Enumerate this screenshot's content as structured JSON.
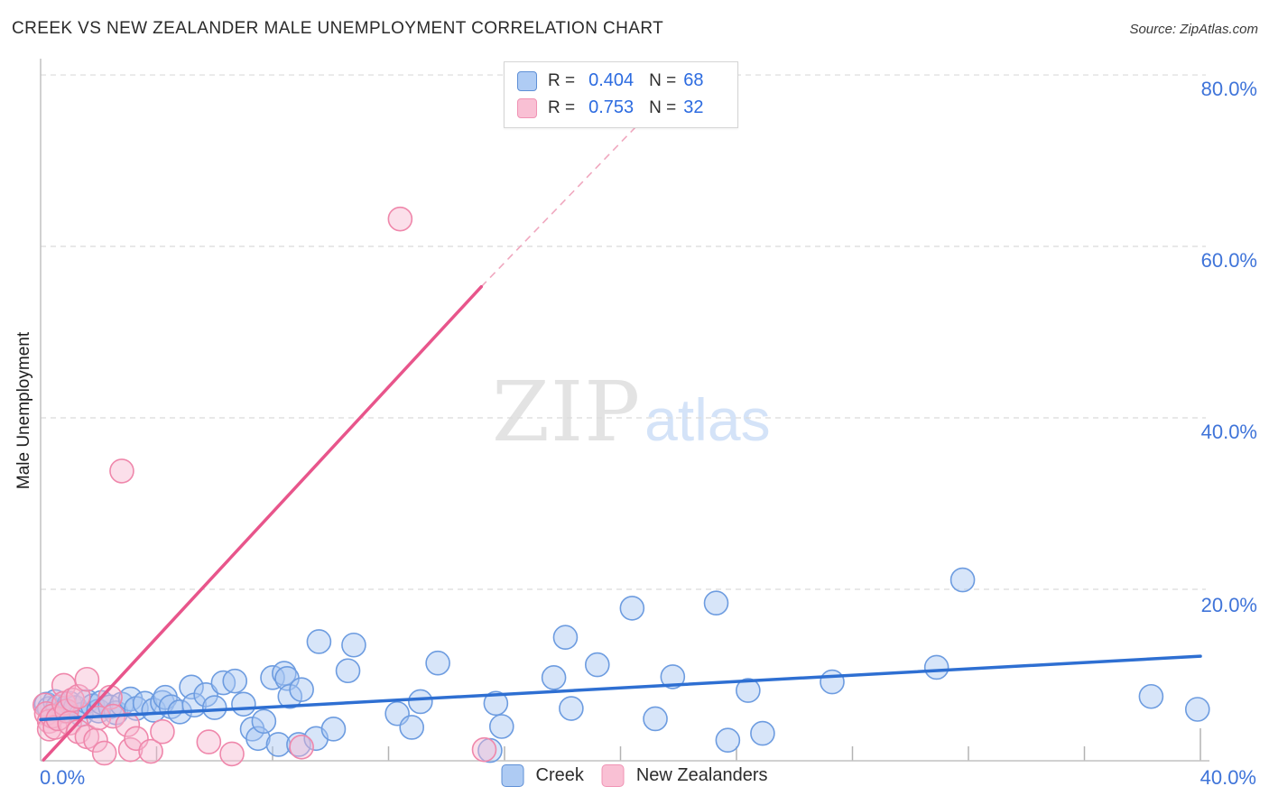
{
  "header": {
    "title": "CREEK VS NEW ZEALANDER MALE UNEMPLOYMENT CORRELATION CHART",
    "source": "Source: ZipAtlas.com"
  },
  "y_axis_label": "Male Unemployment",
  "watermark": {
    "zip": "ZIP",
    "atlas": "atlas"
  },
  "stats_legend": {
    "rows": [
      {
        "series": "Creek",
        "r_label": "R =",
        "r_value": "0.404",
        "n_label": "N =",
        "n_value": "68"
      },
      {
        "series": "New Zealanders",
        "r_label": "R =",
        "r_value": "0.753",
        "n_label": "N =",
        "n_value": "32"
      }
    ]
  },
  "bottom_legend": [
    {
      "label": "Creek"
    },
    {
      "label": "New Zealanders"
    }
  ],
  "axes": {
    "y_ticks": [
      {
        "label": "80.0%",
        "value": 80
      },
      {
        "label": "60.0%",
        "value": 60
      },
      {
        "label": "40.0%",
        "value": 40
      },
      {
        "label": "20.0%",
        "value": 20
      }
    ],
    "x_ticks": [
      {
        "label": "0.0%",
        "value": 0
      },
      {
        "label": "40.0%",
        "value": 40
      }
    ]
  },
  "chart_data": {
    "type": "scatter",
    "xlabel": "",
    "ylabel": "Male Unemployment",
    "xlim": [
      0,
      40
    ],
    "ylim": [
      0,
      81.9
    ],
    "grid": "dashed-horizontal",
    "x_minor_ticks": [
      4,
      8,
      12,
      16,
      20,
      24,
      28,
      32,
      36,
      40
    ],
    "colors": {
      "creek_fill": "#a7c6f2",
      "creek_stroke": "#6d9ce0",
      "creek_line": "#2e6fd2",
      "nz_fill": "#f7b7d0",
      "nz_stroke": "#ef87ab",
      "nz_line": "#e8558b",
      "nz_dashed": "#f0a8bf",
      "grid": "#dadada",
      "axis": "#c2c2c2",
      "tick_label": "#3f74d9"
    },
    "series": [
      {
        "name": "Creek",
        "points": [
          [
            0.2,
            6.6
          ],
          [
            0.3,
            6.1
          ],
          [
            0.5,
            6.9
          ],
          [
            0.6,
            6.3
          ],
          [
            0.8,
            5.8
          ],
          [
            1.0,
            6.7
          ],
          [
            1.2,
            6.2
          ],
          [
            1.4,
            5.4
          ],
          [
            1.6,
            6.9
          ],
          [
            1.8,
            6.4
          ],
          [
            2.0,
            5.8
          ],
          [
            2.1,
            6.8
          ],
          [
            2.4,
            6.3
          ],
          [
            2.6,
            5.6
          ],
          [
            2.8,
            6.6
          ],
          [
            3.1,
            7.2
          ],
          [
            3.3,
            6.1
          ],
          [
            3.6,
            6.7
          ],
          [
            3.9,
            5.9
          ],
          [
            4.2,
            6.8
          ],
          [
            4.3,
            7.4
          ],
          [
            4.5,
            6.3
          ],
          [
            4.8,
            5.7
          ],
          [
            5.2,
            8.6
          ],
          [
            5.3,
            6.5
          ],
          [
            5.7,
            7.7
          ],
          [
            6.0,
            6.2
          ],
          [
            6.3,
            9.1
          ],
          [
            6.7,
            9.3
          ],
          [
            7.0,
            6.6
          ],
          [
            7.3,
            3.7
          ],
          [
            7.5,
            2.6
          ],
          [
            7.7,
            4.6
          ],
          [
            8.0,
            9.7
          ],
          [
            8.2,
            1.9
          ],
          [
            8.4,
            10.2
          ],
          [
            8.5,
            9.6
          ],
          [
            8.6,
            7.5
          ],
          [
            8.9,
            1.9
          ],
          [
            9.0,
            8.3
          ],
          [
            9.5,
            2.6
          ],
          [
            9.6,
            13.9
          ],
          [
            10.1,
            3.7
          ],
          [
            10.6,
            10.5
          ],
          [
            10.8,
            13.5
          ],
          [
            12.3,
            5.5
          ],
          [
            12.8,
            3.9
          ],
          [
            13.1,
            6.9
          ],
          [
            13.7,
            11.4
          ],
          [
            15.5,
            1.2
          ],
          [
            15.7,
            6.7
          ],
          [
            15.9,
            4.0
          ],
          [
            17.7,
            9.7
          ],
          [
            18.1,
            14.4
          ],
          [
            18.3,
            6.1
          ],
          [
            19.2,
            11.2
          ],
          [
            20.4,
            17.8
          ],
          [
            21.2,
            4.9
          ],
          [
            21.8,
            9.8
          ],
          [
            23.3,
            18.4
          ],
          [
            23.7,
            2.4
          ],
          [
            24.4,
            8.2
          ],
          [
            24.9,
            3.2
          ],
          [
            27.3,
            9.2
          ],
          [
            30.9,
            10.9
          ],
          [
            31.8,
            21.1
          ],
          [
            38.3,
            7.5
          ],
          [
            39.9,
            6.0
          ]
        ]
      },
      {
        "name": "New Zealanders",
        "points": [
          [
            0.15,
            6.5
          ],
          [
            0.2,
            5.5
          ],
          [
            0.3,
            4.6
          ],
          [
            0.3,
            3.7
          ],
          [
            0.4,
            5.2
          ],
          [
            0.5,
            3.9
          ],
          [
            0.6,
            4.9
          ],
          [
            0.8,
            8.8
          ],
          [
            0.8,
            6.7
          ],
          [
            0.9,
            5.8
          ],
          [
            1.0,
            4.4
          ],
          [
            1.1,
            7.1
          ],
          [
            1.3,
            7.5
          ],
          [
            1.3,
            3.4
          ],
          [
            1.6,
            9.5
          ],
          [
            1.6,
            2.8
          ],
          [
            1.9,
            2.4
          ],
          [
            2.0,
            5.0
          ],
          [
            2.2,
            0.9
          ],
          [
            2.4,
            7.4
          ],
          [
            2.5,
            5.2
          ],
          [
            2.8,
            33.8
          ],
          [
            3.0,
            4.2
          ],
          [
            3.1,
            1.3
          ],
          [
            3.3,
            2.6
          ],
          [
            3.8,
            1.1
          ],
          [
            4.2,
            3.4
          ],
          [
            5.8,
            2.2
          ],
          [
            6.6,
            0.8
          ],
          [
            9.0,
            1.6
          ],
          [
            12.4,
            63.2
          ],
          [
            15.3,
            1.3
          ]
        ]
      }
    ],
    "trend_lines": [
      {
        "series": "Creek",
        "style": "solid",
        "start": [
          0,
          4.8
        ],
        "end": [
          40,
          12.2
        ]
      },
      {
        "series": "New Zealanders",
        "style": "solid",
        "start": [
          0.1,
          0.1
        ],
        "end": [
          15.2,
          55.3
        ]
      },
      {
        "series": "New Zealanders",
        "style": "dashed",
        "start": [
          15.2,
          55.3
        ],
        "end": [
          20.8,
          74.9
        ]
      }
    ]
  }
}
